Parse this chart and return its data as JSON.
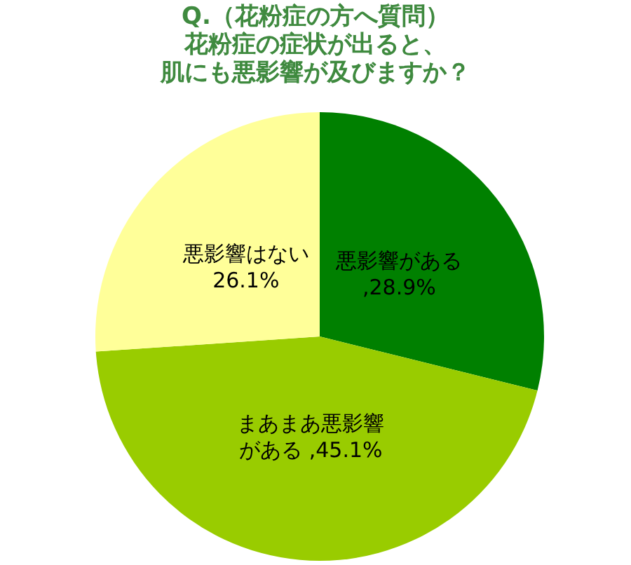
{
  "chart_data": {
    "type": "pie",
    "title": "Q.（花粉症の方へ質問）",
    "subtitle": "花粉症の症状が出ると、肌にも悪影響が及びますか？",
    "categories": [
      "悪影響がある",
      "まあまあ悪影響がある",
      "悪影響はない"
    ],
    "values": [
      28.9,
      45.1,
      26.1
    ],
    "value_labels": [
      ",28.9%",
      ",45.1%",
      "26.1%"
    ],
    "colors": [
      "#008000",
      "#99cc00",
      "#ffff99"
    ]
  }
}
